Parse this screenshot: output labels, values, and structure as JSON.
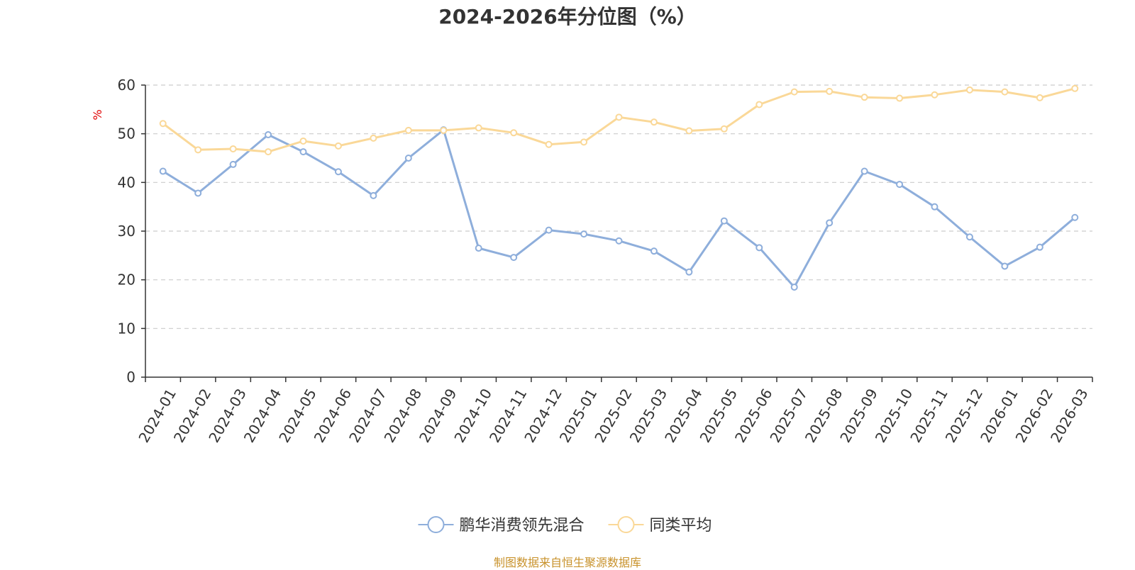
{
  "chart_data": {
    "type": "line",
    "title": "2024-2026年分位图（%）",
    "ylabel": "%",
    "xlabel": "",
    "ylim": [
      0,
      60
    ],
    "yticks": [
      0,
      10,
      20,
      30,
      40,
      50,
      60
    ],
    "grid": "horizontal dashed",
    "legend_position": "bottom-center",
    "categories": [
      "2024-01",
      "2024-02",
      "2024-03",
      "2024-04",
      "2024-05",
      "2024-06",
      "2024-07",
      "2024-08",
      "2024-09",
      "2024-10",
      "2024-11",
      "2024-12",
      "2025-01",
      "2025-02",
      "2025-03",
      "2025-04",
      "2025-05",
      "2025-06",
      "2025-07",
      "2025-08",
      "2025-09",
      "2025-10",
      "2025-11",
      "2025-12",
      "2026-01",
      "2026-02",
      "2026-03"
    ],
    "series": [
      {
        "name": "鹏华消费领先混合",
        "color": "#8eaedb",
        "values": [
          42.3,
          37.8,
          43.7,
          49.8,
          46.3,
          42.2,
          37.3,
          45.0,
          50.8,
          26.5,
          24.6,
          30.2,
          29.4,
          28.0,
          25.9,
          21.6,
          32.1,
          26.6,
          18.5,
          31.7,
          42.3,
          39.6,
          35.0,
          28.8,
          22.8,
          26.7,
          32.8
        ]
      },
      {
        "name": "同类平均",
        "color": "#fad898",
        "values": [
          52.1,
          46.7,
          46.9,
          46.3,
          48.5,
          47.5,
          49.1,
          50.7,
          50.7,
          51.2,
          50.2,
          47.8,
          48.3,
          53.4,
          52.4,
          50.6,
          51.0,
          56.0,
          58.6,
          58.7,
          57.5,
          57.3,
          58.0,
          59.0,
          58.6,
          57.4,
          59.3
        ]
      }
    ]
  },
  "footer": {
    "source": "制图数据来自恒生聚源数据库"
  }
}
